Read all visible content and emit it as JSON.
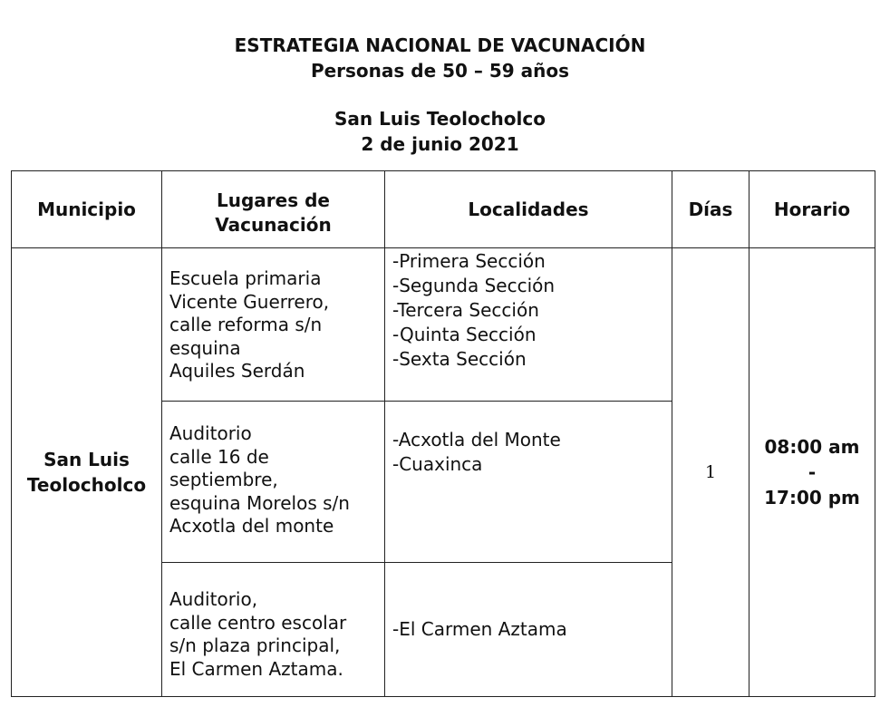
{
  "header": {
    "title": "ESTRATEGIA NACIONAL DE VACUNACIÓN",
    "subtitle": "Personas de 50 – 59 años",
    "place": "San Luis Teolocholco",
    "date": "2 de junio 2021"
  },
  "table": {
    "columns": [
      "Municipio",
      "Lugares de Vacunación",
      "Localidades",
      "Días",
      "Horario"
    ],
    "municipio": [
      "San Luis",
      "Teolocholco"
    ],
    "dias": "1",
    "horario": [
      "08:00 am",
      "-",
      "17:00 pm"
    ],
    "rows": [
      {
        "lugar": [
          "Escuela primaria",
          "Vicente Guerrero,",
          "calle reforma s/n",
          "esquina",
          "Aquiles Serdán"
        ],
        "localidades": [
          "-Primera Sección",
          "-Segunda Sección",
          "-Tercera Sección",
          "-Quinta Sección",
          "-Sexta Sección"
        ]
      },
      {
        "lugar": [
          "Auditorio",
          "calle 16 de",
          "septiembre,",
          "esquina Morelos s/n",
          "Acxotla del monte"
        ],
        "localidades": [
          "-Acxotla del Monte",
          "-Cuaxinca"
        ]
      },
      {
        "lugar": [
          "Auditorio,",
          "calle centro escolar",
          "s/n plaza principal,",
          "El Carmen Aztama."
        ],
        "localidades": [
          "-El Carmen Aztama"
        ]
      }
    ]
  }
}
